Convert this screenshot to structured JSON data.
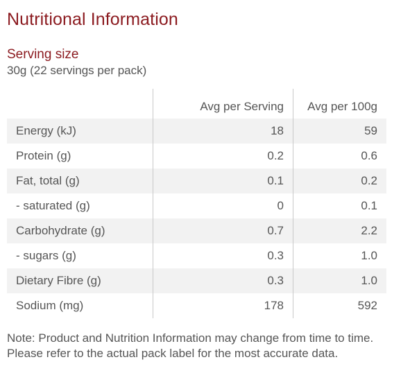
{
  "title": "Nutritional Information",
  "serving": {
    "label": "Serving size",
    "value": "30g (22 servings per pack)"
  },
  "table": {
    "headers": [
      "",
      "Avg per Serving",
      "Avg per 100g"
    ],
    "rows": [
      {
        "name": "Energy (kJ)",
        "per_serving": "18",
        "per_100g": "59"
      },
      {
        "name": "Protein (g)",
        "per_serving": "0.2",
        "per_100g": "0.6"
      },
      {
        "name": "Fat, total (g)",
        "per_serving": "0.1",
        "per_100g": "0.2"
      },
      {
        "name": "- saturated (g)",
        "per_serving": "0",
        "per_100g": "0.1"
      },
      {
        "name": "Carbohydrate (g)",
        "per_serving": "0.7",
        "per_100g": "2.2"
      },
      {
        "name": "- sugars (g)",
        "per_serving": "0.3",
        "per_100g": "1.0"
      },
      {
        "name": "Dietary Fibre (g)",
        "per_serving": "0.3",
        "per_100g": "1.0"
      },
      {
        "name": "Sodium (mg)",
        "per_serving": "178",
        "per_100g": "592"
      }
    ]
  },
  "note": "Note: Product and Nutrition Information may change from time to time. Please refer to the actual pack label for the most accurate data.",
  "colors": {
    "accent": "#8b1a1f",
    "text": "#555555",
    "row_stripe": "#f2f2f2",
    "divider": "#c8c8c8"
  }
}
